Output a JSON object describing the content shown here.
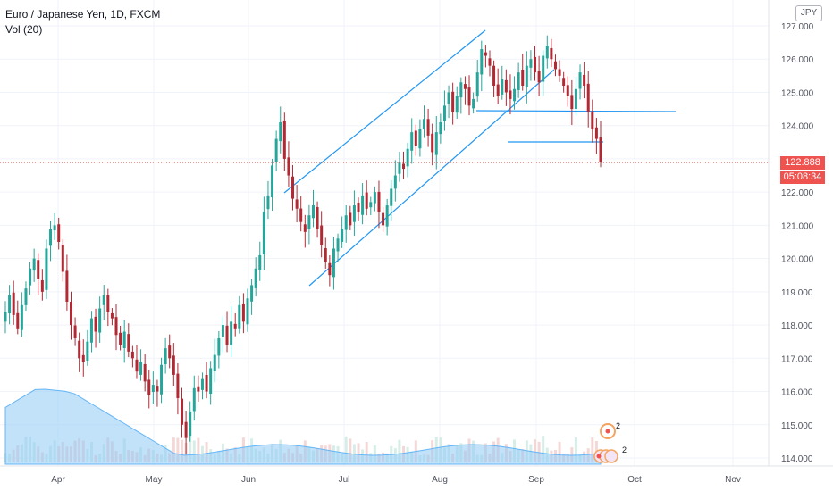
{
  "legend": {
    "symbol": "Euro / Japanese Yen, 1D, FXCM",
    "indicator": "Vol (20)"
  },
  "currency_badge": "JPY",
  "price_tag": {
    "price": "122.888",
    "countdown": "05:08:34"
  },
  "colors": {
    "up": "#26a69a",
    "down": "#8a1c1c",
    "down_candle": "#b22833",
    "channel": "#2196f3",
    "current_price": "#ef5350",
    "volume_ma": "#8fcaf5",
    "grid": "#f0f3fa"
  },
  "icons": [
    "event-marker-icon",
    "earnings-badge-icon"
  ],
  "markers": [
    "2",
    "2"
  ],
  "chart_data": {
    "type": "candlestick",
    "xaxis_ticks": [
      "Apr",
      "May",
      "Jun",
      "Jul",
      "Aug",
      "Sep",
      "Oct",
      "Nov"
    ],
    "yaxis_ticks": [
      "127.000",
      "126.000",
      "125.000",
      "124.000",
      "123.000",
      "122.000",
      "121.000",
      "120.000",
      "119.000",
      "118.000",
      "117.000",
      "116.000",
      "115.000",
      "114.000"
    ],
    "ylim": [
      113.8,
      127.6
    ],
    "current_price": 122.888,
    "closes": [
      118.4,
      118.9,
      118.3,
      117.9,
      118.6,
      119.1,
      119.7,
      120.0,
      119.4,
      119.0,
      120.3,
      120.9,
      121.0,
      120.5,
      119.6,
      118.7,
      118.0,
      117.6,
      117.0,
      116.9,
      117.5,
      118.2,
      117.8,
      118.5,
      118.9,
      118.4,
      118.2,
      117.7,
      117.4,
      117.8,
      117.2,
      117.0,
      116.6,
      116.9,
      116.3,
      115.9,
      116.2,
      116.0,
      116.8,
      117.3,
      117.0,
      116.5,
      115.8,
      115.0,
      114.6,
      115.4,
      116.1,
      116.0,
      116.4,
      116.0,
      116.7,
      117.1,
      117.6,
      118.0,
      117.4,
      118.1,
      117.9,
      118.6,
      118.1,
      118.8,
      119.2,
      119.7,
      120.1,
      121.4,
      121.9,
      122.8,
      123.6,
      124.1,
      123.0,
      122.5,
      121.8,
      121.5,
      121.1,
      120.8,
      121.3,
      121.6,
      120.9,
      120.4,
      119.9,
      119.5,
      120.3,
      120.6,
      120.9,
      121.3,
      121.0,
      121.6,
      121.4,
      121.9,
      121.5,
      121.7,
      122.0,
      121.4,
      121.0,
      121.6,
      122.1,
      122.5,
      122.9,
      122.7,
      123.3,
      123.8,
      123.4,
      123.9,
      124.2,
      123.7,
      123.2,
      123.8,
      124.1,
      124.6,
      125.0,
      124.4,
      124.9,
      125.3,
      125.1,
      124.6,
      124.8,
      125.6,
      126.3,
      126.1,
      125.8,
      125.2,
      124.9,
      125.4,
      125.0,
      124.8,
      125.1,
      125.6,
      125.2,
      125.8,
      126.0,
      125.6,
      125.3,
      126.1,
      126.4,
      126.0,
      125.7,
      125.5,
      125.2,
      124.9,
      124.5,
      125.1,
      125.6,
      125.2,
      124.4,
      123.9,
      123.6,
      122.9
    ],
    "volume_label": "Vol (20)"
  }
}
